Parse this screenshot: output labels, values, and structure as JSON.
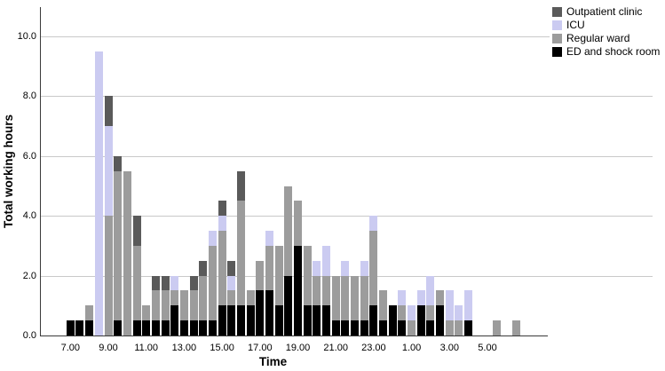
{
  "chart_data": {
    "type": "bar",
    "stacked": true,
    "title": "",
    "xlabel": "Time",
    "ylabel": "Total working hours",
    "ylim": [
      0,
      11
    ],
    "y_ticks": [
      "0.0",
      "2.0",
      "4.0",
      "6.0",
      "8.0",
      "10.0"
    ],
    "y_tick_values": [
      0,
      2,
      4,
      6,
      8,
      10
    ],
    "grid": true,
    "legend_position": "top-right",
    "x_tick_every": 4,
    "categories": [
      "7.00",
      "7.30",
      "8.00",
      "8.30",
      "9.00",
      "9.30",
      "10.00",
      "10.30",
      "11.00",
      "11.30",
      "12.00",
      "12.30",
      "13.00",
      "13.30",
      "14.00",
      "14.30",
      "15.00",
      "15.30",
      "16.00",
      "16.30",
      "17.00",
      "17.30",
      "18.00",
      "18.30",
      "19.00",
      "19.30",
      "20.00",
      "20.30",
      "21.00",
      "21.30",
      "22.00",
      "22.30",
      "23.00",
      "23.30",
      "24.00",
      "0.30",
      "1.00",
      "1.30",
      "2.00",
      "2.30",
      "3.00",
      "3.30",
      "4.00",
      "4.30",
      "5.00",
      "5.30",
      "6.00",
      "6.30"
    ],
    "series": [
      {
        "name": "ED and shock room",
        "color": "#000000",
        "values": [
          0.5,
          0.5,
          0.5,
          0,
          0,
          0.5,
          0,
          0.5,
          0.5,
          0.5,
          0.5,
          1.0,
          0.5,
          0.5,
          0.5,
          0.5,
          1.0,
          1.0,
          1.0,
          1.0,
          1.5,
          1.5,
          1.0,
          2.0,
          3.0,
          1.0,
          1.0,
          1.0,
          0.5,
          0.5,
          0.5,
          0.5,
          1.0,
          0.5,
          1.0,
          0.5,
          0,
          1.0,
          0.5,
          1.0,
          0,
          0,
          0.5,
          0,
          0,
          0,
          0,
          0
        ]
      },
      {
        "name": "Regular ward",
        "color": "#9c9c9c",
        "values": [
          0,
          0,
          0.5,
          0,
          4.0,
          5.0,
          5.5,
          2.5,
          0.5,
          1.0,
          1.0,
          0.5,
          1.0,
          1.0,
          1.5,
          2.5,
          2.5,
          0.5,
          3.5,
          0.5,
          1.0,
          1.5,
          2.0,
          3.0,
          1.5,
          2.0,
          1.0,
          1.0,
          1.5,
          1.5,
          1.5,
          1.5,
          2.5,
          1.0,
          0,
          0.5,
          0.5,
          0,
          0.5,
          0.5,
          0.5,
          0.5,
          0,
          0,
          0,
          0.5,
          0,
          0.5
        ]
      },
      {
        "name": "ICU",
        "color": "#cbcbf1",
        "values": [
          0,
          0,
          0,
          9.5,
          3.0,
          0,
          0,
          0,
          0,
          0,
          0,
          0.5,
          0,
          0,
          0,
          0.5,
          0.5,
          0.5,
          0,
          0,
          0,
          0.5,
          0,
          0,
          0,
          0,
          0.5,
          1.0,
          0,
          0.5,
          0,
          0.5,
          0.5,
          0,
          0,
          0.5,
          0.5,
          0.5,
          1.0,
          0,
          1.0,
          0.5,
          1.0,
          0,
          0,
          0,
          0,
          0
        ]
      },
      {
        "name": "Outpatient clinic",
        "color": "#5a5a5a",
        "values": [
          0,
          0,
          0,
          0,
          1.0,
          0.5,
          0,
          1.0,
          0,
          0.5,
          0.5,
          0,
          0,
          0.5,
          0.5,
          0,
          0.5,
          0.5,
          1.0,
          0,
          0,
          0,
          0,
          0,
          0,
          0,
          0,
          0,
          0,
          0,
          0,
          0,
          0,
          0,
          0,
          0,
          0,
          0,
          0,
          0,
          0,
          0,
          0,
          0,
          0,
          0,
          0,
          0
        ]
      }
    ]
  },
  "axes": {
    "x_title": "Time",
    "y_title": "Total working hours"
  },
  "legend": {
    "items": [
      {
        "label": "Outpatient clinic",
        "color": "#5a5a5a"
      },
      {
        "label": "ICU",
        "color": "#cbcbf1"
      },
      {
        "label": "Regular ward",
        "color": "#9c9c9c"
      },
      {
        "label": "ED and shock room",
        "color": "#000000"
      }
    ]
  },
  "colors": {
    "gridline": "#c9c9c9",
    "axis": "#3a3a3a",
    "background": "#ffffff"
  }
}
